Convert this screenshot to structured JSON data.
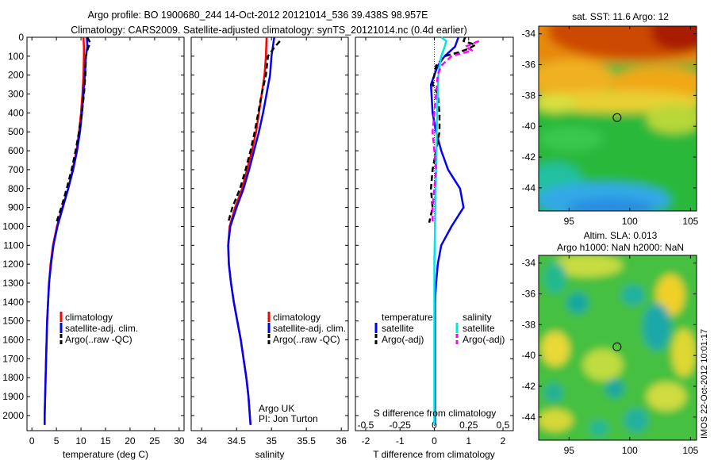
{
  "header": {
    "line1": "Argo profile: BO 1900680_244 14-Oct-2012 20121014_536 39.438S 98.957E",
    "line2": "Climatology: CARS2009. Satellite-adjusted climatology: synTS_20121014.nc (0.4d earlier)"
  },
  "colors": {
    "climatology": "#ff0000",
    "satellite": "#0000ff",
    "argo": "#000000",
    "sal_satellite": "#00e5e5",
    "sal_argo": "#ff00ff"
  },
  "credits": {
    "line1": "Argo UK",
    "line2": "PI: Jon Turton"
  },
  "stamp": "IMOS 22-Oct-2012 10:01:17",
  "chart_data": [
    {
      "type": "line",
      "panel": "temperature",
      "xlabel": "temperature (deg C)",
      "ylabel": "",
      "xlim": [
        -1,
        31
      ],
      "ylim": [
        2080,
        0
      ],
      "xticks": [
        0,
        5,
        10,
        15,
        20,
        25,
        30
      ],
      "yticks": [
        0,
        100,
        200,
        300,
        400,
        500,
        600,
        700,
        800,
        900,
        1000,
        1100,
        1200,
        1300,
        1400,
        1500,
        1600,
        1700,
        1800,
        1900,
        2000
      ],
      "legend": {
        "position": "lower-right",
        "entries": [
          "climatology",
          "satellite-adj. clim.",
          "Argo(..raw -QC)"
        ]
      },
      "series": [
        {
          "name": "climatology",
          "color": "#ff0000",
          "dashed": false,
          "points": [
            [
              10.5,
              0
            ],
            [
              10.6,
              50
            ],
            [
              10.6,
              100
            ],
            [
              10.5,
              200
            ],
            [
              10.3,
              300
            ],
            [
              10.0,
              400
            ],
            [
              9.6,
              500
            ],
            [
              9.1,
              600
            ],
            [
              8.3,
              700
            ],
            [
              7.4,
              800
            ],
            [
              6.2,
              900
            ],
            [
              5.1,
              1000
            ],
            [
              4.3,
              1100
            ],
            [
              3.8,
              1200
            ],
            [
              3.5,
              1300
            ],
            [
              3.3,
              1400
            ],
            [
              3.1,
              1500
            ],
            [
              3.0,
              1600
            ],
            [
              2.9,
              1700
            ],
            [
              2.8,
              1800
            ],
            [
              2.7,
              1900
            ],
            [
              2.6,
              2000
            ],
            [
              2.6,
              2050
            ]
          ]
        },
        {
          "name": "satellite-adj. clim.",
          "color": "#0000ff",
          "dashed": false,
          "points": [
            [
              11.2,
              0
            ],
            [
              11.3,
              50
            ],
            [
              11.0,
              100
            ],
            [
              10.8,
              200
            ],
            [
              10.5,
              300
            ],
            [
              10.2,
              400
            ],
            [
              9.8,
              500
            ],
            [
              9.2,
              600
            ],
            [
              8.4,
              700
            ],
            [
              7.4,
              800
            ],
            [
              6.3,
              900
            ],
            [
              5.2,
              1000
            ],
            [
              4.4,
              1100
            ],
            [
              3.9,
              1200
            ],
            [
              3.5,
              1300
            ],
            [
              3.3,
              1400
            ],
            [
              3.1,
              1500
            ],
            [
              3.0,
              1600
            ],
            [
              2.9,
              1700
            ],
            [
              2.8,
              1800
            ],
            [
              2.7,
              1900
            ],
            [
              2.6,
              2000
            ],
            [
              2.6,
              2050
            ]
          ]
        },
        {
          "name": "Argo(..raw -QC)",
          "color": "#000000",
          "dashed": true,
          "points": [
            [
              11.3,
              0
            ],
            [
              11.9,
              30
            ],
            [
              11.4,
              60
            ],
            [
              11.0,
              100
            ],
            [
              10.9,
              200
            ],
            [
              10.6,
              300
            ],
            [
              10.2,
              400
            ],
            [
              9.6,
              500
            ],
            [
              8.9,
              600
            ],
            [
              8.1,
              700
            ],
            [
              7.1,
              800
            ],
            [
              6.0,
              900
            ],
            [
              5.0,
              980
            ]
          ]
        }
      ]
    },
    {
      "type": "line",
      "panel": "salinity",
      "xlabel": "salinity",
      "ylabel": "",
      "xlim": [
        33.85,
        36.1
      ],
      "ylim": [
        2080,
        0
      ],
      "xticks": [
        34,
        34.5,
        35,
        35.5,
        36
      ],
      "xticklabels": [
        "34",
        "34.5",
        "35",
        "35.5",
        "36"
      ],
      "legend": {
        "position": "lower-right",
        "entries": [
          "climatology",
          "satellite-adj. clim.",
          "Argo(..raw -QC)"
        ]
      },
      "series": [
        {
          "name": "climatology",
          "color": "#ff0000",
          "dashed": false,
          "points": [
            [
              34.93,
              0
            ],
            [
              34.92,
              100
            ],
            [
              34.9,
              200
            ],
            [
              34.86,
              300
            ],
            [
              34.82,
              400
            ],
            [
              34.78,
              500
            ],
            [
              34.72,
              600
            ],
            [
              34.65,
              700
            ],
            [
              34.58,
              800
            ],
            [
              34.48,
              900
            ],
            [
              34.4,
              1000
            ],
            [
              34.38,
              1100
            ],
            [
              34.39,
              1200
            ],
            [
              34.42,
              1300
            ],
            [
              34.46,
              1400
            ],
            [
              34.51,
              1500
            ],
            [
              34.56,
              1600
            ],
            [
              34.6,
              1700
            ],
            [
              34.64,
              1800
            ],
            [
              34.67,
              1900
            ],
            [
              34.69,
              2000
            ],
            [
              34.7,
              2050
            ]
          ]
        },
        {
          "name": "satellite-adj. clim.",
          "color": "#0000ff",
          "dashed": false,
          "points": [
            [
              35.04,
              0
            ],
            [
              35.0,
              100
            ],
            [
              34.98,
              200
            ],
            [
              34.93,
              300
            ],
            [
              34.88,
              400
            ],
            [
              34.82,
              500
            ],
            [
              34.75,
              600
            ],
            [
              34.68,
              700
            ],
            [
              34.6,
              800
            ],
            [
              34.5,
              900
            ],
            [
              34.41,
              1000
            ],
            [
              34.38,
              1100
            ],
            [
              34.39,
              1200
            ],
            [
              34.42,
              1300
            ],
            [
              34.46,
              1400
            ],
            [
              34.51,
              1500
            ],
            [
              34.56,
              1600
            ],
            [
              34.6,
              1700
            ],
            [
              34.64,
              1800
            ],
            [
              34.67,
              1900
            ],
            [
              34.69,
              2000
            ],
            [
              34.7,
              2050
            ]
          ]
        },
        {
          "name": "Argo(..raw -QC)",
          "color": "#000000",
          "dashed": true,
          "points": [
            [
              35.12,
              20
            ],
            [
              35.05,
              50
            ],
            [
              34.95,
              100
            ],
            [
              34.92,
              200
            ],
            [
              34.86,
              300
            ],
            [
              34.81,
              400
            ],
            [
              34.76,
              500
            ],
            [
              34.7,
              600
            ],
            [
              34.63,
              700
            ],
            [
              34.55,
              800
            ],
            [
              34.44,
              900
            ],
            [
              34.38,
              980
            ]
          ]
        }
      ]
    },
    {
      "type": "line",
      "panel": "difference",
      "xlabel": "T difference from climatology",
      "x2label": "S difference from climatology",
      "xlim": [
        -2.3,
        2.3
      ],
      "ylim": [
        2080,
        0
      ],
      "xticks": [
        -2,
        -1,
        0,
        1,
        2
      ],
      "xticklabels": [
        "-2",
        "-1",
        "0",
        "1",
        "2"
      ],
      "x2ticks": [
        -0.5,
        -0.25,
        0,
        0.25,
        0.5
      ],
      "x2ticklabels": [
        "-0.5",
        "-0.25",
        "0",
        "0.25",
        "0.5"
      ],
      "legend": {
        "position": "lower-center",
        "temperature_header": "temperature",
        "salinity_header": "salinity",
        "entries": [
          "satellite",
          "Argo(-adj)",
          "satellite",
          "Argo(-adj)"
        ]
      },
      "series": [
        {
          "name": "temperature satellite",
          "color": "#0000ff",
          "dashed": false,
          "points": [
            [
              0.7,
              0
            ],
            [
              0.6,
              50
            ],
            [
              0.3,
              100
            ],
            [
              0.1,
              150
            ],
            [
              -0.1,
              250
            ],
            [
              -0.05,
              400
            ],
            [
              0.05,
              500
            ],
            [
              0.2,
              600
            ],
            [
              0.4,
              700
            ],
            [
              0.75,
              800
            ],
            [
              0.85,
              900
            ],
            [
              0.5,
              1000
            ],
            [
              0.2,
              1100
            ],
            [
              0.1,
              1200
            ],
            [
              0.05,
              1300
            ],
            [
              0.02,
              1400
            ],
            [
              0.02,
              1500
            ],
            [
              0.02,
              1600
            ],
            [
              0.02,
              1700
            ],
            [
              0.02,
              1800
            ],
            [
              0.02,
              1900
            ],
            [
              0.02,
              2000
            ],
            [
              0.02,
              2050
            ]
          ]
        },
        {
          "name": "temperature Argo(-adj)",
          "color": "#000000",
          "dashed": true,
          "points": [
            [
              0.9,
              0
            ],
            [
              0.85,
              20
            ],
            [
              1.2,
              40
            ],
            [
              1.0,
              60
            ],
            [
              0.7,
              80
            ],
            [
              0.3,
              100
            ],
            [
              0.05,
              150
            ],
            [
              -0.05,
              250
            ],
            [
              0.1,
              300
            ],
            [
              0.15,
              400
            ],
            [
              0.15,
              500
            ],
            [
              0.05,
              600
            ],
            [
              -0.05,
              700
            ],
            [
              -0.1,
              800
            ],
            [
              -0.05,
              900
            ],
            [
              -0.15,
              980
            ]
          ]
        },
        {
          "name": "salinity satellite",
          "color": "#00e5e5",
          "dashed": false,
          "points": [
            [
              0.2,
              0
            ],
            [
              0.35,
              20
            ],
            [
              0.3,
              50
            ],
            [
              0.2,
              100
            ],
            [
              0.15,
              150
            ],
            [
              0.12,
              200
            ],
            [
              0.1,
              300
            ],
            [
              0.08,
              400
            ],
            [
              0.07,
              500
            ],
            [
              0.06,
              600
            ],
            [
              0.05,
              700
            ],
            [
              0.04,
              800
            ],
            [
              0.03,
              900
            ],
            [
              0.02,
              1000
            ],
            [
              0.01,
              1100
            ],
            [
              0.0,
              1200
            ],
            [
              0.0,
              1300
            ],
            [
              0.0,
              1400
            ],
            [
              0.0,
              1500
            ],
            [
              0.0,
              1600
            ],
            [
              0.0,
              1700
            ],
            [
              0.0,
              1800
            ],
            [
              0.0,
              1900
            ],
            [
              0.0,
              2000
            ],
            [
              0.0,
              2050
            ]
          ]
        },
        {
          "name": "salinity Argo(-adj)",
          "color": "#ff00ff",
          "dashed": true,
          "points": [
            [
              1.3,
              20
            ],
            [
              0.9,
              50
            ],
            [
              1.1,
              70
            ],
            [
              0.5,
              100
            ],
            [
              0.2,
              150
            ],
            [
              0.1,
              200
            ],
            [
              0.05,
              300
            ],
            [
              0.0,
              400
            ],
            [
              -0.05,
              500
            ],
            [
              0.0,
              600
            ],
            [
              0.05,
              700
            ],
            [
              0.0,
              800
            ],
            [
              -0.05,
              900
            ],
            [
              -0.05,
              980
            ]
          ]
        }
      ]
    },
    {
      "type": "heatmap",
      "panel": "sst",
      "title": "sat. SST: 11.6 Argo: 12",
      "xlim": [
        92.5,
        105.5
      ],
      "ylim": [
        -45.5,
        -33.5
      ],
      "xticks": [
        95,
        100,
        105
      ],
      "yticks": [
        -34,
        -36,
        -38,
        -40,
        -42,
        -44
      ],
      "marker": {
        "lon": 98.957,
        "lat": -39.438
      }
    },
    {
      "type": "heatmap",
      "panel": "sla",
      "title": "Altim. SLA: 0.013",
      "subtitle": "Argo h1000: NaN h2000: NaN",
      "xlim": [
        92.5,
        105.5
      ],
      "ylim": [
        -45.5,
        -33.5
      ],
      "xticks": [
        95,
        100,
        105
      ],
      "yticks": [
        -34,
        -36,
        -38,
        -40,
        -42,
        -44
      ],
      "marker": {
        "lon": 98.957,
        "lat": -39.438
      }
    }
  ]
}
